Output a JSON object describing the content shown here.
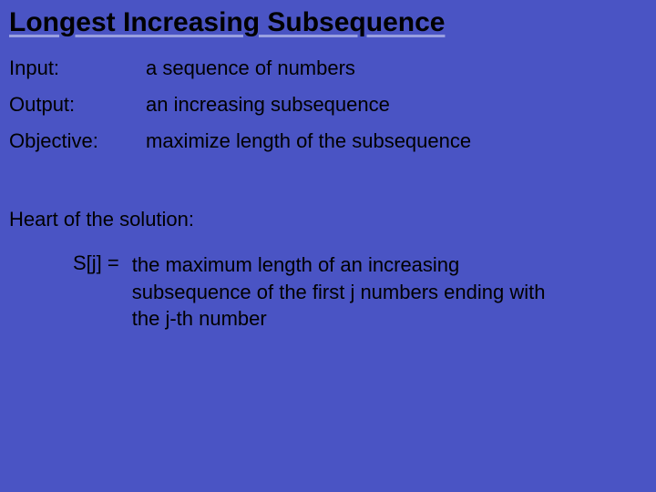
{
  "background_color": "#4a54c4",
  "text_color": "#000000",
  "underline_color": "#9aa0e0",
  "font_family": "Comic Sans MS",
  "title": "Longest Increasing Subsequence",
  "title_fontsize": 30,
  "body_fontsize": 22,
  "definitions": [
    {
      "label": "Input:",
      "value": "a sequence of numbers"
    },
    {
      "label": "Output:",
      "value": "an increasing subsequence"
    },
    {
      "label": "Objective:",
      "value": "maximize length of the subsequence"
    }
  ],
  "heart": {
    "heading": "Heart of the solution:",
    "lhs": "S[j]  =",
    "rhs": "the maximum length of an increasing subsequence of the first j numbers ending with the j-th number"
  }
}
